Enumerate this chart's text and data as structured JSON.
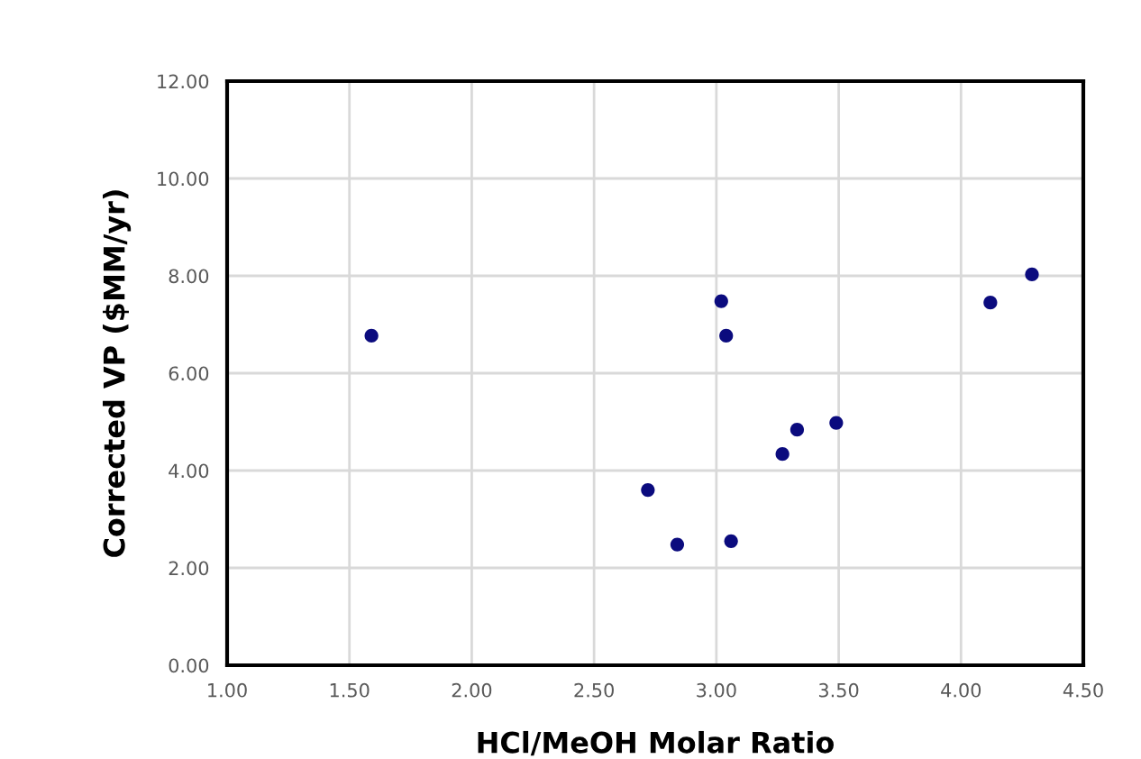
{
  "chart_data": {
    "type": "scatter",
    "xlabel": "HCl/MeOH Molar Ratio",
    "ylabel": "Corrected VP ($MM/yr)",
    "x": [
      1.59,
      2.72,
      2.84,
      3.02,
      3.04,
      3.06,
      3.27,
      3.33,
      3.49,
      4.12,
      4.29
    ],
    "values": [
      6.77,
      3.6,
      2.48,
      7.48,
      6.77,
      2.55,
      4.34,
      4.84,
      4.98,
      7.45,
      8.03
    ],
    "color": "#0b0b7e",
    "marker": "circle",
    "grid": true,
    "xlim": [
      1.0,
      4.5
    ],
    "xticks": [
      {
        "value": 1.0,
        "label": "1.00"
      },
      {
        "value": 1.5,
        "label": "1.50"
      },
      {
        "value": 2.0,
        "label": "2.00"
      },
      {
        "value": 2.5,
        "label": "2.50"
      },
      {
        "value": 3.0,
        "label": "3.00"
      },
      {
        "value": 3.5,
        "label": "3.50"
      },
      {
        "value": 4.0,
        "label": "4.00"
      },
      {
        "value": 4.5,
        "label": "4.50"
      }
    ],
    "ylim": [
      0.0,
      12.0
    ],
    "yticks": [
      {
        "value": 0.0,
        "label": "0.00"
      },
      {
        "value": 2.0,
        "label": "2.00"
      },
      {
        "value": 4.0,
        "label": "4.00"
      },
      {
        "value": 6.0,
        "label": "6.00"
      },
      {
        "value": 8.0,
        "label": "8.00"
      },
      {
        "value": 10.0,
        "label": "10.00"
      },
      {
        "value": 12.0,
        "label": "12.00"
      }
    ]
  }
}
